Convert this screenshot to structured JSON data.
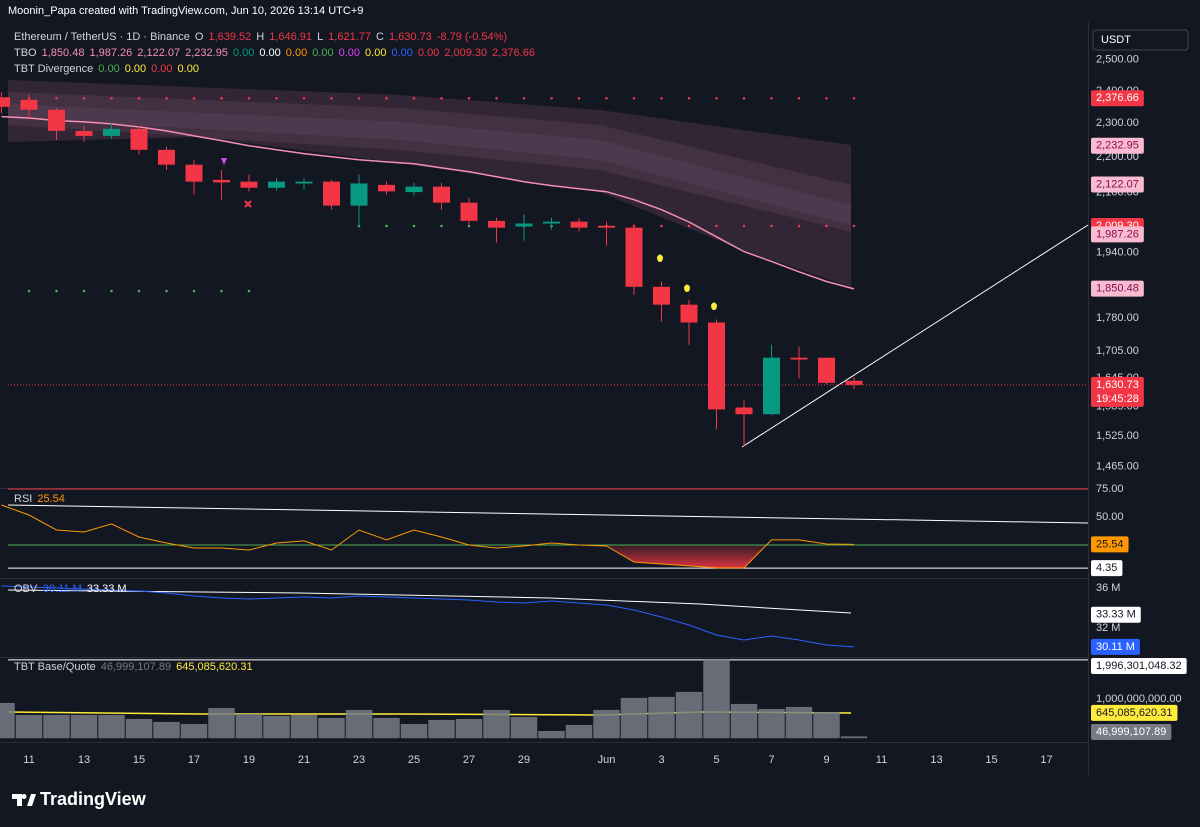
{
  "header": {
    "credit": "Moonin_Papa created with TradingView.com, Jun 10, 2026 13:14 UTC+9",
    "symbol": "Ethereum / TetherUS · 1D · Binance",
    "quote": [
      {
        "text": "O",
        "color": "#d1d4dc"
      },
      {
        "text": "1,639.52",
        "color": "#f23645"
      },
      {
        "text": "H",
        "color": "#d1d4dc"
      },
      {
        "text": "1,646.91",
        "color": "#f23645"
      },
      {
        "text": "L",
        "color": "#d1d4dc"
      },
      {
        "text": "1,621.77",
        "color": "#f23645"
      },
      {
        "text": "C",
        "color": "#d1d4dc"
      },
      {
        "text": "1,630.73",
        "color": "#f23645"
      },
      {
        "text": "-8.79 (-0.54%)",
        "color": "#f23645"
      }
    ],
    "indicators": [
      {
        "name": "TBO",
        "values": [
          {
            "text": "1,850.48",
            "color": "#f48fb1"
          },
          {
            "text": "1,987.26",
            "color": "#f48fb1"
          },
          {
            "text": "2,122.07",
            "color": "#f48fb1"
          },
          {
            "text": "2,232.95",
            "color": "#f48fb1"
          },
          {
            "text": "0.00",
            "color": "#089981"
          },
          {
            "text": "0.00",
            "color": "#ffffff"
          },
          {
            "text": "0.00",
            "color": "#ff9800"
          },
          {
            "text": "0.00",
            "color": "#4caf50"
          },
          {
            "text": "0.00",
            "color": "#e040fb"
          },
          {
            "text": "0.00",
            "color": "#ffeb3b"
          },
          {
            "text": "0.00",
            "color": "#2962ff"
          },
          {
            "text": "0.00",
            "color": "#f23645"
          },
          {
            "text": "2,009.30",
            "color": "#f23645"
          },
          {
            "text": "2,376.66",
            "color": "#f23645"
          }
        ]
      },
      {
        "name": "TBT Divergence",
        "values": [
          {
            "text": "0.00",
            "color": "#4caf50"
          },
          {
            "text": "0.00",
            "color": "#ffeb3b"
          },
          {
            "text": "0.00",
            "color": "#f23645"
          },
          {
            "text": "0.00",
            "color": "#ffeb3b"
          }
        ]
      }
    ]
  },
  "footer": {
    "brand": "TradingView"
  },
  "chart_data": [
    {
      "type": "candlestick",
      "currency": "USDT",
      "log": true,
      "grid": false,
      "categories": [
        null,
        "11",
        null,
        "13",
        null,
        "15",
        null,
        "17",
        null,
        "19",
        null,
        "21",
        null,
        "23",
        null,
        "25",
        null,
        "27",
        null,
        "29",
        null,
        null,
        "Jun",
        null,
        "3",
        null,
        "5",
        null,
        "7",
        null,
        "9",
        null,
        "11",
        null,
        "13",
        null,
        "15",
        null,
        "17",
        null
      ],
      "open": [
        2380,
        2372,
        2341,
        2277,
        2262,
        2283,
        2221,
        2178,
        2135,
        2130,
        2113,
        2125,
        2130,
        2064,
        2121,
        2101,
        2116,
        2072,
        2023,
        2008,
        2016,
        2021,
        2010,
        2005,
        1855,
        1812,
        1770,
        1583,
        1569,
        1690,
        1690,
        1639.52,
        null,
        null,
        null,
        null,
        null,
        null,
        null,
        null
      ],
      "high": [
        2395,
        2388,
        2346,
        2292,
        2300,
        2292,
        2230,
        2192,
        2163,
        2150,
        2140,
        2140,
        2135,
        2150,
        2130,
        2127,
        2127,
        2085,
        2031,
        2040,
        2031,
        2031,
        2021,
        2013,
        1868,
        1824,
        1777,
        1600,
        1719,
        1715,
        1690,
        1646.91,
        null,
        null,
        null,
        null,
        null,
        null,
        null,
        null
      ],
      "low": [
        2330,
        2316,
        2250,
        2244,
        2253,
        2207,
        2163,
        2094,
        2080,
        2103,
        2105,
        2108,
        2053,
        2005,
        2094,
        2092,
        2053,
        2013,
        1966,
        1971,
        2000,
        1995,
        1958,
        1836,
        1772,
        1719,
        1538,
        1504,
        1567,
        1645,
        1632,
        1621.77,
        null,
        null,
        null,
        null,
        null,
        null,
        null,
        null
      ],
      "close": [
        2350,
        2341,
        2277,
        2262,
        2283,
        2221,
        2178,
        2130,
        2128,
        2113,
        2130,
        2130,
        2064,
        2125,
        2103,
        2116,
        2072,
        2023,
        2005,
        2016,
        2021,
        2005,
        2005,
        1855,
        1812,
        1770,
        1579,
        1569,
        1690,
        1686,
        1635,
        1630.73,
        null,
        null,
        null,
        null,
        null,
        null,
        null,
        null
      ],
      "up_color": "#089981",
      "down_color": "#f23645",
      "overlay": {
        "color": "#f48fb1",
        "values": [
          2320,
          2316,
          2308,
          2304,
          2298,
          2289,
          2277,
          2262,
          2248,
          2233,
          2221,
          2210,
          2201,
          2192,
          2186,
          2181,
          2169,
          2158,
          2144,
          2130,
          2119,
          2110,
          2102,
          2080,
          2053,
          2020,
          1981,
          1943,
          1918,
          1892,
          1868,
          1850,
          null,
          null,
          null,
          null,
          null,
          null,
          null,
          null
        ]
      },
      "ylim": [
        1424,
        2617
      ],
      "yticks": [
        {
          "value": 2500,
          "label": "2,500.00"
        },
        {
          "value": 2400,
          "label": "2,400.00"
        },
        {
          "value": 2300,
          "label": "2,300.00"
        },
        {
          "value": 2200,
          "label": "2,200.00"
        },
        {
          "value": 2100,
          "label": "2,100.00"
        },
        {
          "value": 1940,
          "label": "1,940.00"
        },
        {
          "value": 1780,
          "label": "1,780.00"
        },
        {
          "value": 1705,
          "label": "1,705.00"
        },
        {
          "value": 1645,
          "label": "1,645.00"
        },
        {
          "value": 1585,
          "label": "1,585.00"
        },
        {
          "value": 1525,
          "label": "1,525.00"
        },
        {
          "value": 1465,
          "label": "1,465.00"
        }
      ],
      "price_labels": [
        {
          "value": 2376.66,
          "label": "2,376.66",
          "bg": "#f23645",
          "fg": "#ffffff"
        },
        {
          "value": 2232.95,
          "label": "2,232.95",
          "bg": "#f8bbd0",
          "fg": "#880e4f"
        },
        {
          "value": 2122.07,
          "label": "2,122.07",
          "bg": "#f8bbd0",
          "fg": "#880e4f"
        },
        {
          "value": 2009.3,
          "label": "2,009.30",
          "bg": "#f23645",
          "fg": "#ffffff"
        },
        {
          "value": 1987.26,
          "label": "1,987.26",
          "bg": "#f8bbd0",
          "fg": "#880e4f"
        },
        {
          "value": 1850.48,
          "label": "1,850.48",
          "bg": "#f8bbd0",
          "fg": "#880e4f"
        },
        {
          "value": 1630.73,
          "label": "1,630.73",
          "countdown": "19:45:28",
          "bg": "#f23645",
          "fg": "#ffffff"
        }
      ]
    },
    {
      "type": "line",
      "color": "#ff9800",
      "legend": [
        {
          "text": "RSI",
          "color": "#d1d4dc"
        },
        {
          "text": "25.54",
          "color": "#ff9800"
        }
      ],
      "values": [
        60.7,
        51.8,
        38.4,
        36.6,
        43.8,
        32.1,
        26.8,
        22.3,
        22.3,
        20.5,
        26.8,
        28.6,
        20.5,
        38.4,
        29.5,
        38.4,
        32.1,
        25.0,
        22.3,
        24.1,
        26.8,
        25.0,
        24.1,
        9.8,
        8.0,
        6.3,
        4.5,
        4.5,
        29.5,
        29.5,
        25.9,
        25.54,
        null,
        null,
        null,
        null,
        null,
        null,
        null,
        null
      ],
      "ylim": [
        -3.6,
        74.1
      ],
      "yticks": [
        {
          "value": 75,
          "label": "75.00"
        },
        {
          "value": 50,
          "label": "50.00"
        }
      ],
      "levels": [
        {
          "value": 75,
          "color": "#f23645"
        },
        {
          "value": 25,
          "color": "#4caf50"
        },
        {
          "value": 4.35,
          "color": "#ffffff"
        }
      ],
      "price_labels": [
        {
          "value": 25.54,
          "label": "25.54",
          "bg": "#ff9800",
          "fg": "#131722"
        },
        {
          "value": 4.35,
          "label": "4.35",
          "bg": "#ffffff",
          "fg": "#131722"
        }
      ]
    },
    {
      "type": "line",
      "color": "#2962ff",
      "legend": [
        {
          "text": "OBV",
          "color": "#d1d4dc"
        },
        {
          "text": "30.11 M",
          "color": "#2962ff"
        },
        {
          "text": "33.33 M",
          "color": "#ffffff"
        }
      ],
      "values": [
        36.2,
        36.1,
        36.0,
        35.9,
        35.8,
        35.7,
        35.5,
        35.2,
        35.0,
        34.9,
        35.0,
        35.1,
        35.0,
        35.2,
        35.1,
        35.0,
        34.9,
        34.8,
        34.6,
        34.5,
        34.7,
        34.5,
        34.3,
        33.8,
        33.1,
        32.3,
        31.3,
        30.8,
        31.2,
        30.8,
        30.3,
        30.11,
        null,
        null,
        null,
        null,
        null,
        null,
        null,
        null
      ],
      "ylim": [
        29.1,
        36.8
      ],
      "yticks": [
        {
          "value": 36,
          "label": "36 M"
        },
        {
          "value": 32,
          "label": "32 M"
        }
      ],
      "price_labels": [
        {
          "value": 33.33,
          "label": "33.33 M",
          "bg": "#ffffff",
          "fg": "#131722"
        },
        {
          "value": 30.11,
          "label": "30.11 M",
          "bg": "#2962ff",
          "fg": "#ffffff"
        }
      ]
    },
    {
      "type": "bar",
      "color": "#787b86",
      "legend": [
        {
          "text": "TBT Base/Quote",
          "color": "#d1d4dc"
        },
        {
          "text": "46,999,107.89",
          "color": "#787b86"
        },
        {
          "text": "645,085,620.31",
          "color": "#ffeb3b"
        }
      ],
      "values": [
        899000000,
        592000000,
        592000000,
        592000000,
        592000000,
        490000000,
        414000000,
        363000000,
        771000000,
        618000000,
        567000000,
        592000000,
        516000000,
        720000000,
        516000000,
        363000000,
        465000000,
        490000000,
        720000000,
        541000000,
        184000000,
        337000000,
        720000000,
        1027000000,
        1052000000,
        1180000000,
        1996301048.32,
        873000000,
        745000000,
        797000000,
        669000000,
        46999107.89,
        null,
        null,
        null,
        null,
        null,
        null,
        null,
        null
      ],
      "ylim": [
        -46000000,
        2043000000
      ],
      "yticks": [
        {
          "value": 1000000000,
          "label": "1,000,000,000.00"
        }
      ],
      "levels": [
        {
          "value": 1996301048.32,
          "color": "#ffffff"
        }
      ],
      "price_labels": [
        {
          "value": 1996301048.32,
          "label": "1,996,301,048.32",
          "bg": "#ffffff",
          "fg": "#131722"
        },
        {
          "value": 645085620.31,
          "label": "645,085,620.31",
          "bg": "#ffeb3b",
          "fg": "#131722"
        },
        {
          "value": 46999107.89,
          "label": "46,999,107.89",
          "bg": "#787b86",
          "fg": "#ffffff"
        }
      ]
    }
  ]
}
